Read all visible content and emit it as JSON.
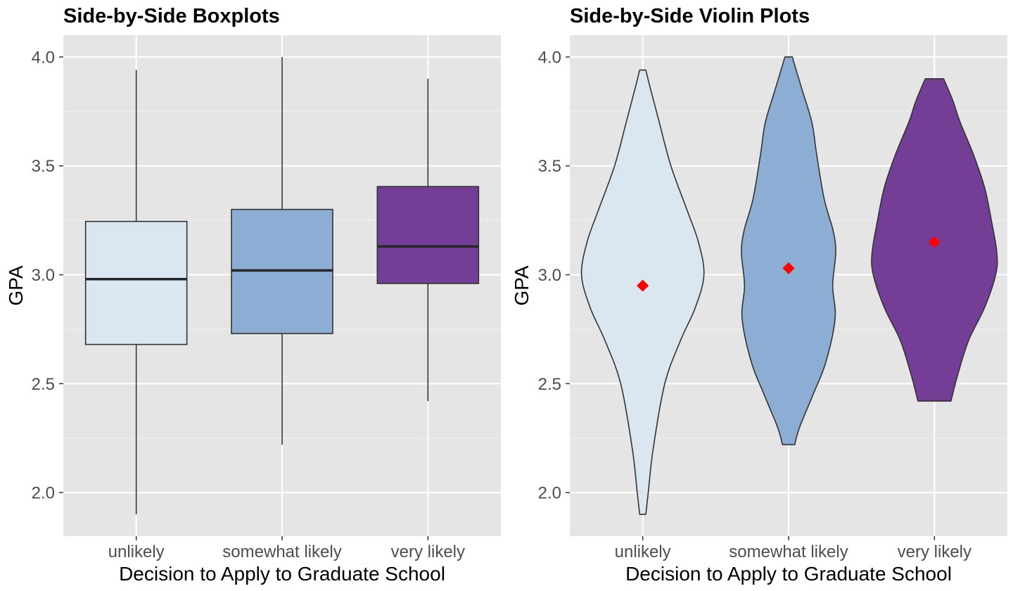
{
  "chart_data": [
    {
      "type": "boxplot",
      "title": "Side-by-Side Boxplots",
      "xlabel": "Decision to Apply to Graduate School",
      "ylabel": "GPA",
      "ylim": [
        1.8,
        4.1
      ],
      "yticks": [
        2.0,
        2.5,
        3.0,
        3.5,
        4.0
      ],
      "ytick_labels": [
        "2.0",
        "2.5",
        "3.0",
        "3.5",
        "4.0"
      ],
      "categories": [
        "unlikely",
        "somewhat likely",
        "very likely"
      ],
      "colors": [
        "#dae7f0",
        "#8caed4",
        "#753e96"
      ],
      "grid": true,
      "boxes": [
        {
          "min": 1.9,
          "q1": 2.68,
          "median": 2.98,
          "q3": 3.245,
          "max": 3.94
        },
        {
          "min": 2.22,
          "q1": 2.73,
          "median": 3.02,
          "q3": 3.3,
          "max": 4.0
        },
        {
          "min": 2.42,
          "q1": 2.96,
          "median": 3.13,
          "q3": 3.405,
          "max": 3.9
        }
      ]
    },
    {
      "type": "violin",
      "title": "Side-by-Side Violin Plots",
      "xlabel": "Decision to Apply to Graduate School",
      "ylabel": "GPA",
      "ylim": [
        1.8,
        4.1
      ],
      "yticks": [
        2.0,
        2.5,
        3.0,
        3.5,
        4.0
      ],
      "ytick_labels": [
        "2.0",
        "2.5",
        "3.0",
        "3.5",
        "4.0"
      ],
      "categories": [
        "unlikely",
        "somewhat likely",
        "very likely"
      ],
      "colors": [
        "#dae7f0",
        "#8caed4",
        "#753e96"
      ],
      "mean_marker_color": "#ff0000",
      "grid": true,
      "violins": [
        {
          "mean": 2.95,
          "density": [
            [
              1.9,
              0.05
            ],
            [
              2.0,
              0.09
            ],
            [
              2.2,
              0.17
            ],
            [
              2.5,
              0.36
            ],
            [
              2.7,
              0.62
            ],
            [
              2.85,
              0.86
            ],
            [
              3.0,
              1.0
            ],
            [
              3.15,
              0.91
            ],
            [
              3.3,
              0.72
            ],
            [
              3.5,
              0.46
            ],
            [
              3.7,
              0.27
            ],
            [
              3.85,
              0.13
            ],
            [
              3.94,
              0.05
            ]
          ]
        },
        {
          "mean": 3.03,
          "density": [
            [
              2.22,
              0.1
            ],
            [
              2.3,
              0.18
            ],
            [
              2.45,
              0.4
            ],
            [
              2.6,
              0.61
            ],
            [
              2.8,
              0.76
            ],
            [
              2.95,
              0.72
            ],
            [
              3.1,
              0.77
            ],
            [
              3.2,
              0.73
            ],
            [
              3.35,
              0.58
            ],
            [
              3.55,
              0.46
            ],
            [
              3.7,
              0.38
            ],
            [
              3.85,
              0.22
            ],
            [
              4.0,
              0.06
            ]
          ]
        },
        {
          "mean": 3.15,
          "density": [
            [
              2.42,
              0.27
            ],
            [
              2.55,
              0.39
            ],
            [
              2.7,
              0.56
            ],
            [
              2.85,
              0.82
            ],
            [
              3.0,
              1.0
            ],
            [
              3.1,
              1.02
            ],
            [
              3.25,
              0.93
            ],
            [
              3.4,
              0.82
            ],
            [
              3.55,
              0.64
            ],
            [
              3.7,
              0.42
            ],
            [
              3.8,
              0.3
            ],
            [
              3.9,
              0.15
            ]
          ]
        }
      ]
    }
  ]
}
